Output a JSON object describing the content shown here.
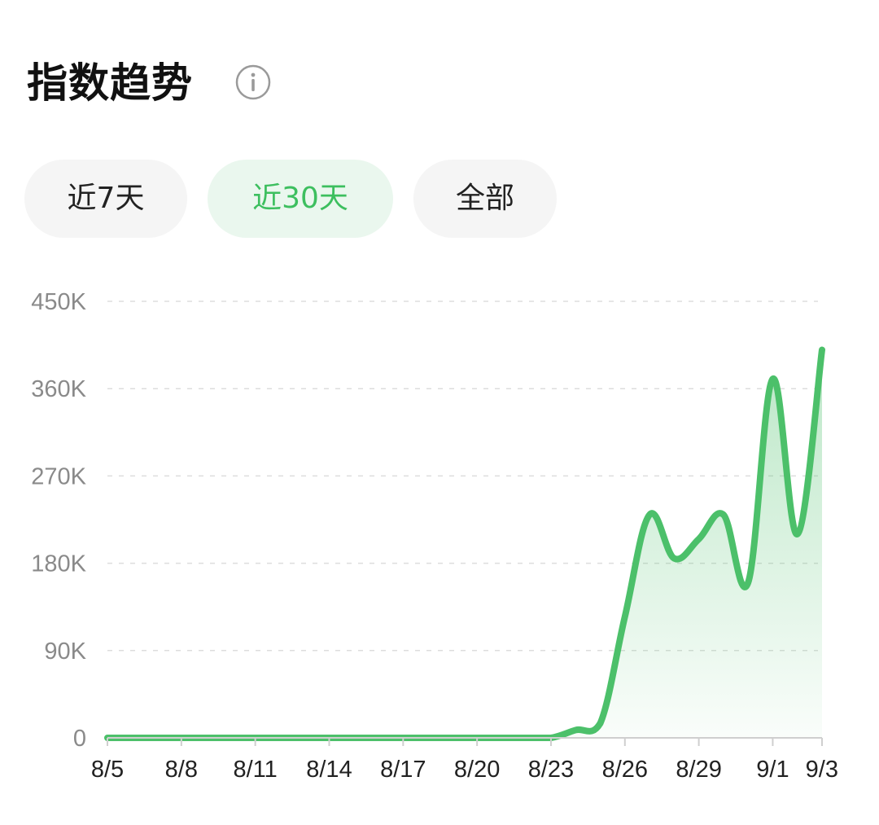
{
  "header": {
    "title": "指数趋势",
    "info_icon": "info-circle-icon"
  },
  "tabs": [
    {
      "label": "近7天",
      "active": false
    },
    {
      "label": "近30天",
      "active": true
    },
    {
      "label": "全部",
      "active": false
    }
  ],
  "colors": {
    "accent": "#4cc06a",
    "grid": "#dddddd",
    "tab_bg": "#f5f5f5",
    "tab_active_bg": "#eaf7ee",
    "tab_active_text": "#3dbf5f"
  },
  "chart_data": {
    "type": "area",
    "x": [
      "8/5",
      "8/6",
      "8/7",
      "8/8",
      "8/9",
      "8/10",
      "8/11",
      "8/12",
      "8/13",
      "8/14",
      "8/15",
      "8/16",
      "8/17",
      "8/18",
      "8/19",
      "8/20",
      "8/21",
      "8/22",
      "8/23",
      "8/24",
      "8/25",
      "8/26",
      "8/27",
      "8/28",
      "8/29",
      "8/30",
      "8/31",
      "9/1",
      "9/2",
      "9/3"
    ],
    "values": [
      0,
      0,
      0,
      0,
      0,
      0,
      0,
      0,
      0,
      0,
      0,
      0,
      0,
      0,
      0,
      0,
      0,
      0,
      0,
      8000,
      15000,
      125000,
      230000,
      185000,
      205000,
      230000,
      160000,
      370000,
      210000,
      400000
    ],
    "x_tick_labels": [
      "8/5",
      "8/8",
      "8/11",
      "8/14",
      "8/17",
      "8/20",
      "8/23",
      "8/26",
      "8/29",
      "9/1",
      "9/3"
    ],
    "y_ticks": [
      0,
      90000,
      180000,
      270000,
      360000,
      450000
    ],
    "y_tick_labels": [
      "0",
      "90K",
      "180K",
      "270K",
      "360K",
      "450K"
    ],
    "ylim": [
      0,
      450000
    ],
    "grid": true,
    "legend": "none"
  }
}
